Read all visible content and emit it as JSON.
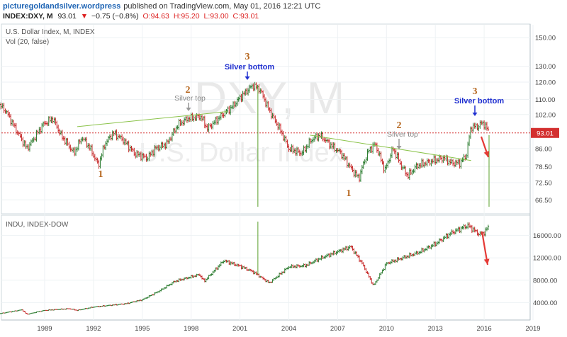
{
  "header": {
    "site": "picturegoldandsilver.wordpress",
    "published": "published on TradingView.com, May 01, 2016 12:21 UTC",
    "symbol": "INDEX:DXY, M",
    "last": "93.01",
    "change": "−0.75 (−0.8%)",
    "open": "O:94.63",
    "high": "H:95.20",
    "low": "L:93.00",
    "close": "C:93.01"
  },
  "colors": {
    "up": "#2e7d32",
    "down": "#c62828",
    "trend": "#8bc34a",
    "marker": "#5aa02c",
    "price_line": "#d32f2f",
    "annotation_arrow": "#e53935",
    "silver_bottom": "#1f2fd0",
    "silver_top": "#999999",
    "wave_number": "#b5651d"
  },
  "chart_data": [
    {
      "type": "line",
      "title": "U.S. Dollar Index, M, INDEX",
      "subtitle": "Vol (20, false)",
      "watermark": "DXY, M",
      "watermark_sub": "U.S. Dollar Index",
      "y_ticks": [
        "150.00",
        "130.00",
        "120.00",
        "110.00",
        "102.00",
        "93.01",
        "86.00",
        "78.50",
        "72.50",
        "66.50"
      ],
      "last_price": "93.01",
      "series": [
        {
          "x": [
            1986.0,
            1986.6,
            1987.2,
            1987.9,
            1988.3,
            1988.9,
            1989.5,
            1990.0,
            1990.8,
            1991.3,
            1991.8,
            1992.3,
            1992.7,
            1993.2,
            1993.8,
            1994.5,
            1995.3,
            1995.8,
            1996.5,
            1997.2,
            1997.8,
            1998.6,
            1999.0,
            1999.8,
            2000.5,
            2001.2,
            2001.8,
            2002.2,
            2002.8,
            2003.5,
            2004.0,
            2004.8,
            2005.4,
            2005.9,
            2006.5,
            2007.2,
            2007.8,
            2008.3,
            2008.6,
            2008.9,
            2009.3,
            2009.9,
            2010.4,
            2010.9,
            2011.3,
            2011.9,
            2012.4,
            2012.9,
            2013.5,
            2014.0,
            2014.5,
            2014.9,
            2015.2,
            2015.6,
            2015.9,
            2016.1,
            2016.33
          ],
          "y": [
            109,
            104,
            95,
            86,
            90,
            97,
            100,
            92,
            84,
            91,
            86,
            79,
            88,
            93,
            90,
            84,
            82,
            86,
            88,
            97,
            100,
            101,
            95,
            101,
            106,
            113,
            118,
            116,
            104,
            94,
            86,
            84,
            90,
            92,
            88,
            84,
            78,
            74,
            80,
            85,
            88,
            77,
            86,
            79,
            75,
            79,
            80,
            81,
            82,
            80,
            80,
            83,
            96,
            96,
            98,
            96,
            93
          ]
        }
      ],
      "annotations": {
        "wave_1_left": "1",
        "wave_2_left": "2",
        "wave_3_left": "3",
        "silver_top_left": "Silver top",
        "silver_bottom_left": "Silver bottom",
        "wave_1_right": "1",
        "wave_2_right": "2",
        "wave_3_right": "3",
        "silver_top_right": "Silver top",
        "silver_bottom_right": "Silver bottom"
      }
    },
    {
      "type": "line",
      "title": "INDU, INDEX-DOW",
      "y_ticks": [
        "16000.00",
        "12000.00",
        "8000.00",
        "4000.00"
      ],
      "series": [
        {
          "x": [
            1986.0,
            1987.6,
            1987.9,
            1989.0,
            1990.5,
            1991.0,
            1992.0,
            1993.0,
            1994.0,
            1995.0,
            1996.0,
            1997.0,
            1998.5,
            1998.8,
            2000.0,
            2001.0,
            2001.8,
            2002.8,
            2004.0,
            2005.0,
            2006.0,
            2007.8,
            2008.5,
            2009.2,
            2010.0,
            2011.0,
            2012.0,
            2013.0,
            2014.0,
            2015.0,
            2015.7,
            2016.0,
            2016.33
          ],
          "y": [
            1900,
            2700,
            1900,
            2600,
            2900,
            2600,
            3200,
            3500,
            3800,
            4500,
            6000,
            7800,
            9000,
            7800,
            11500,
            10500,
            9500,
            7500,
            10400,
            10600,
            12000,
            14000,
            11000,
            7000,
            11000,
            12000,
            13000,
            14500,
            16500,
            17800,
            16200,
            16500,
            17800
          ]
        }
      ]
    }
  ],
  "x_ticks": [
    "1989",
    "1992",
    "1995",
    "1998",
    "2001",
    "2004",
    "2007",
    "2010",
    "2013",
    "2016",
    "2019"
  ]
}
